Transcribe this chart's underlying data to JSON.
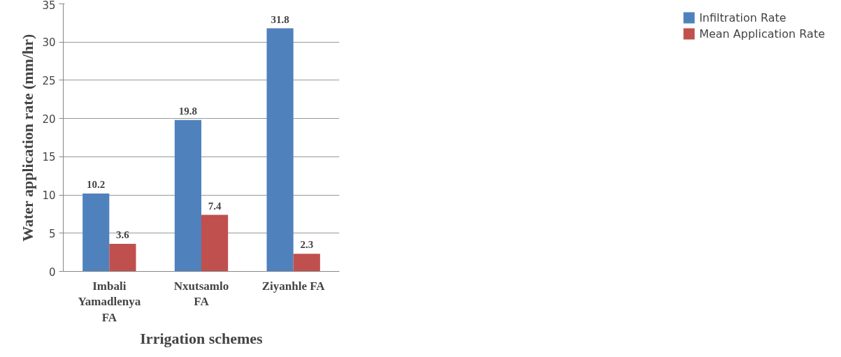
{
  "chart_data": {
    "type": "bar",
    "xlabel": "Irrigation schemes",
    "ylabel": "Water application rate (mm/hr)",
    "categories": [
      "Imbali Yamadlenya FA",
      "Nxutsamlo FA",
      "Ziyanhle FA"
    ],
    "series": [
      {
        "name": "Infiltration Rate",
        "color": "#4f81bd",
        "values": [
          10.2,
          19.8,
          31.8
        ]
      },
      {
        "name": "Mean Application Rate",
        "color": "#c0504d",
        "values": [
          3.6,
          7.4,
          2.3
        ]
      }
    ],
    "ylim": [
      0,
      35
    ],
    "yticks": [
      0,
      5,
      10,
      15,
      20,
      25,
      30,
      35
    ],
    "grid": "y",
    "legend": "right",
    "data_labels": true
  }
}
